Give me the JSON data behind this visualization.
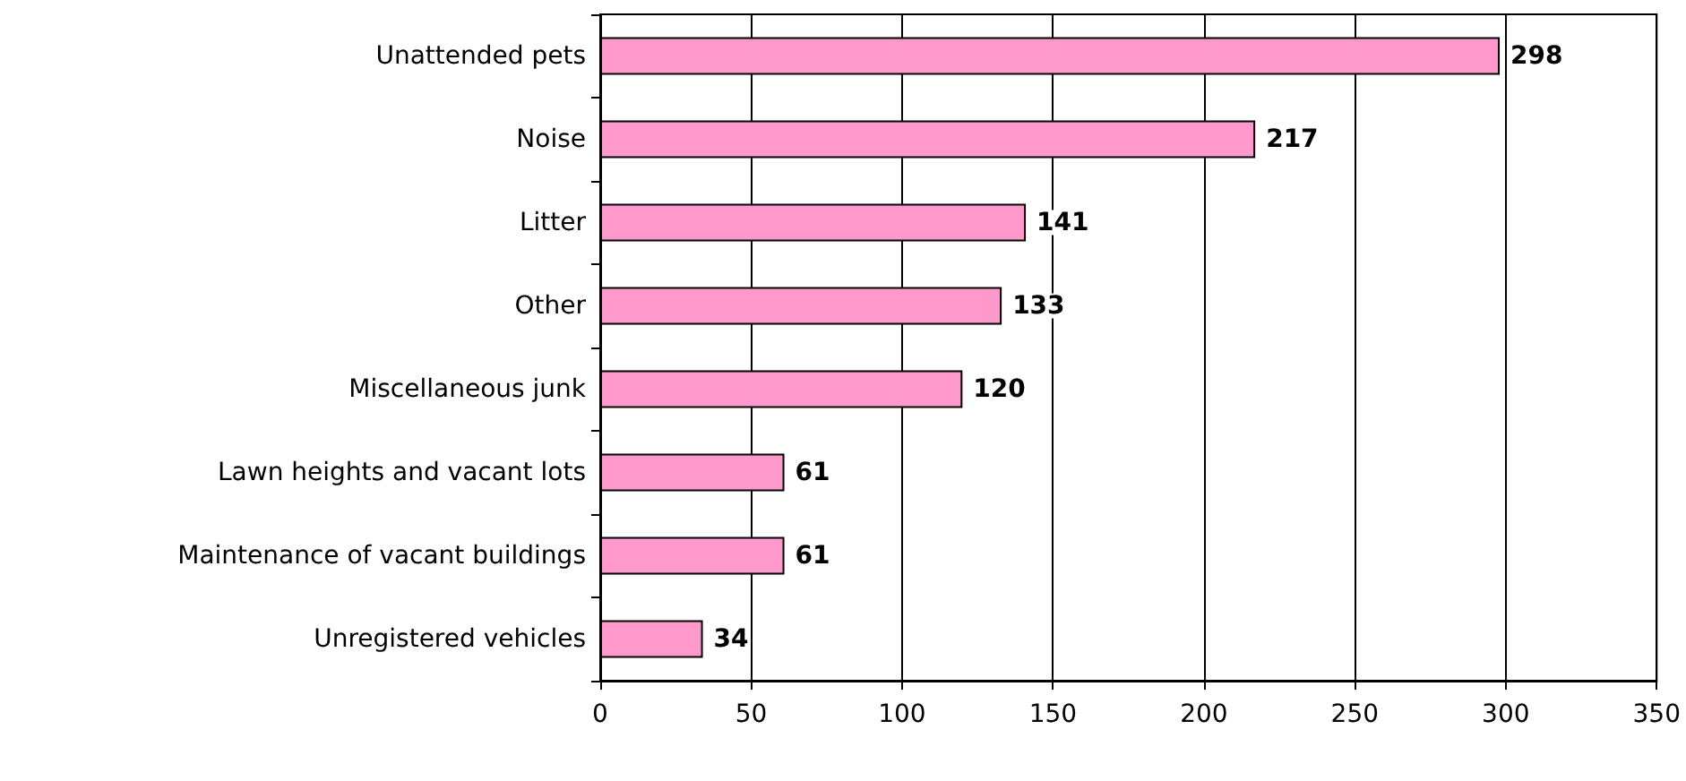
{
  "chart_data": {
    "type": "bar",
    "orientation": "horizontal",
    "categories": [
      "Unattended pets",
      "Noise",
      "Litter",
      "Other",
      "Miscellaneous junk",
      "Lawn heights and vacant lots",
      "Maintenance of vacant buildings",
      "Unregistered vehicles"
    ],
    "values": [
      298,
      217,
      141,
      133,
      120,
      61,
      61,
      34
    ],
    "color": "#ff99cc",
    "xlim": [
      0,
      350
    ],
    "xticks": [
      0,
      50,
      100,
      150,
      200,
      250,
      300,
      350
    ],
    "grid": "x",
    "data_labels": true
  }
}
